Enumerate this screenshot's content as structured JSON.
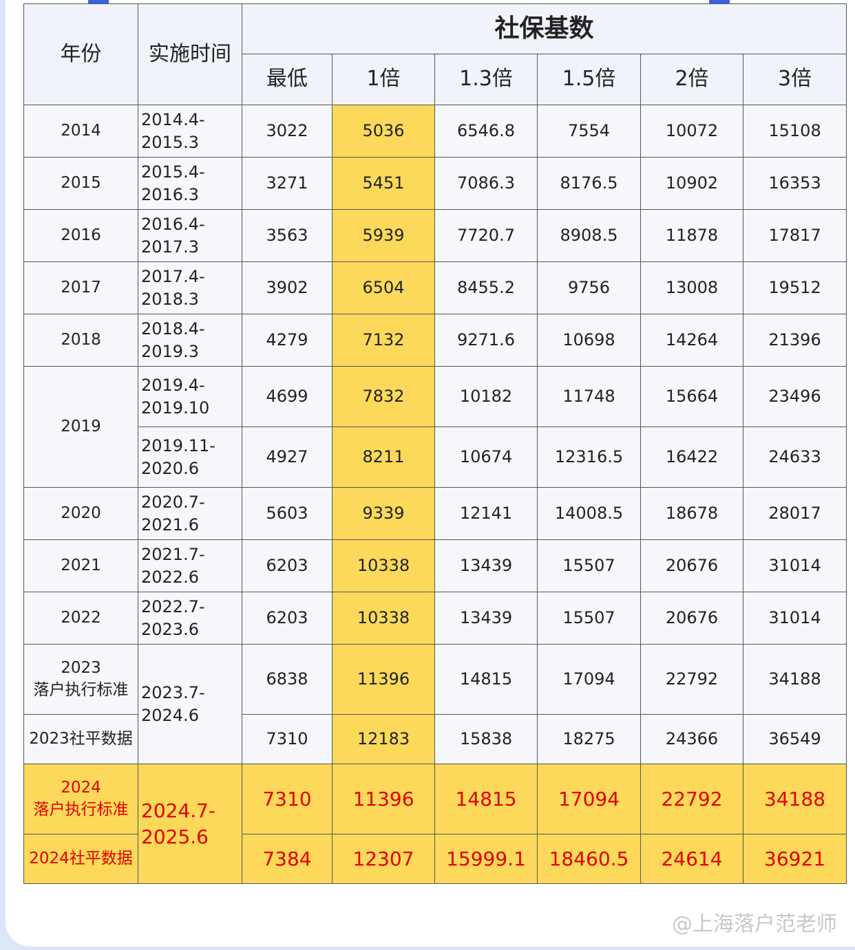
{
  "header": {
    "year": "年份",
    "period": "实施时间",
    "group": "社保基数",
    "columns": [
      "最低",
      "1倍",
      "1.3倍",
      "1.5倍",
      "2倍",
      "3倍"
    ]
  },
  "rows": [
    {
      "year": "2014",
      "period": "2014.4-2015.3",
      "values": [
        "3022",
        "5036",
        "6546.8",
        "7554",
        "10072",
        "15108"
      ]
    },
    {
      "year": "2015",
      "period": "2015.4-2016.3",
      "values": [
        "3271",
        "5451",
        "7086.3",
        "8176.5",
        "10902",
        "16353"
      ]
    },
    {
      "year": "2016",
      "period": "2016.4-2017.3",
      "values": [
        "3563",
        "5939",
        "7720.7",
        "8908.5",
        "11878",
        "17817"
      ]
    },
    {
      "year": "2017",
      "period": "2017.4-2018.3",
      "values": [
        "3902",
        "6504",
        "8455.2",
        "9756",
        "13008",
        "19512"
      ]
    },
    {
      "year": "2018",
      "period": "2018.4-2019.3",
      "values": [
        "4279",
        "7132",
        "9271.6",
        "10698",
        "14264",
        "21396"
      ]
    },
    {
      "year": "2019",
      "period": "2019.4-2019.10",
      "values": [
        "4699",
        "7832",
        "10182",
        "11748",
        "15664",
        "23496"
      ]
    },
    {
      "period": "2019.11-2020.6",
      "values": [
        "4927",
        "8211",
        "10674",
        "12316.5",
        "16422",
        "24633"
      ]
    },
    {
      "year": "2020",
      "period": "2020.7-2021.6",
      "values": [
        "5603",
        "9339",
        "12141",
        "14008.5",
        "18678",
        "28017"
      ]
    },
    {
      "year": "2021",
      "period": "2021.7-2022.6",
      "values": [
        "6203",
        "10338",
        "13439",
        "15507",
        "20676",
        "31014"
      ]
    },
    {
      "year": "2022",
      "period": "2022.7-2023.6",
      "values": [
        "6203",
        "10338",
        "13439",
        "15507",
        "20676",
        "31014"
      ]
    },
    {
      "year": "2023\n落户执行标准",
      "period": "2023.7-2024.6",
      "values": [
        "6838",
        "11396",
        "14815",
        "17094",
        "22792",
        "34188"
      ]
    },
    {
      "year": "2023社平数据",
      "values": [
        "7310",
        "12183",
        "15838",
        "18275",
        "24366",
        "36549"
      ]
    },
    {
      "year": "2024\n落户执行标准",
      "period": "2024.7-2025.6",
      "highlight": true,
      "values": [
        "7310",
        "11396",
        "14815",
        "17094",
        "22792",
        "34188"
      ]
    },
    {
      "year": "2024社平数据",
      "highlight": true,
      "values": [
        "7384",
        "12307",
        "15999.1",
        "18460.5",
        "24614",
        "36921"
      ]
    }
  ],
  "watermark": "@上海落户范老师"
}
